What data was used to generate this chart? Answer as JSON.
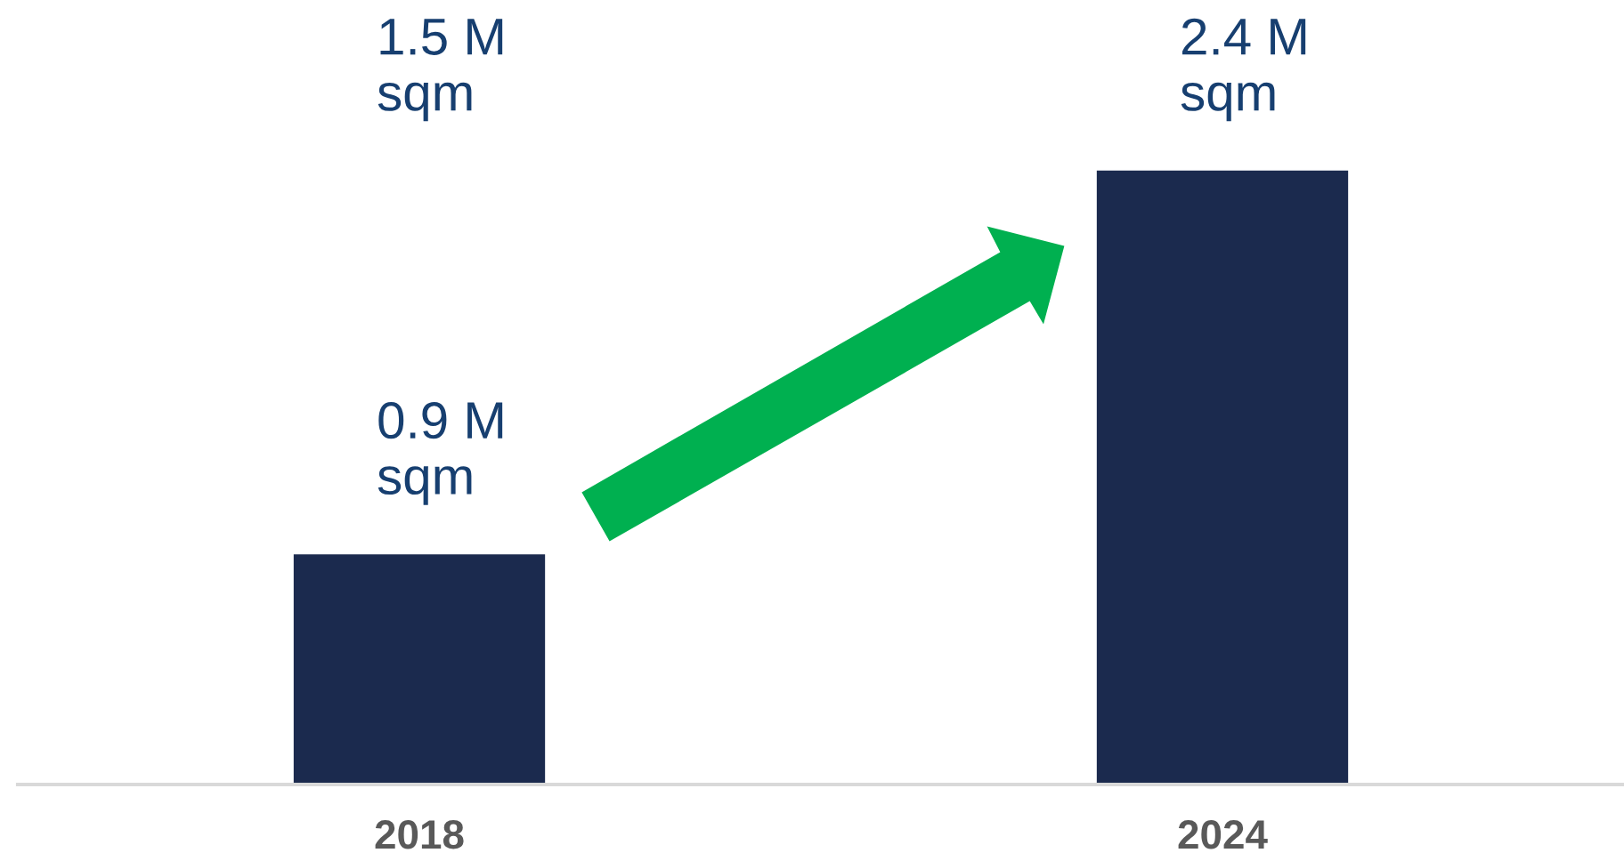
{
  "chart_data": {
    "type": "bar",
    "categories": [
      "2018",
      "2024"
    ],
    "values": [
      0.9,
      2.4
    ],
    "color": "#1b2a4e",
    "value_labels": [
      "0.9 M\nsqm",
      "2.4 M\nsqm"
    ],
    "annotations": [
      "1.5 M\nsqm"
    ]
  }
}
